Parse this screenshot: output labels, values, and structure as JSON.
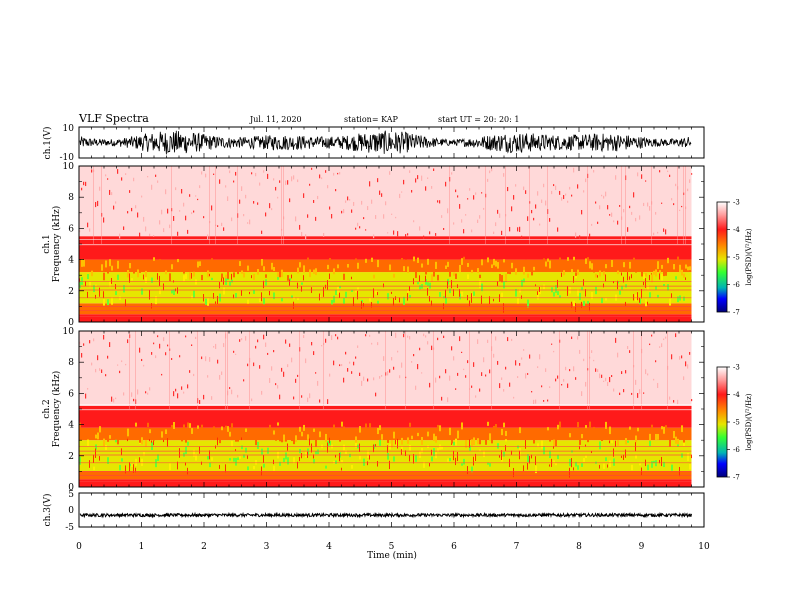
{
  "header": {
    "title": "VLF Spectra",
    "date": "Jul. 11, 2020",
    "station": "station= KAP",
    "start": "start UT = 20: 20: 1"
  },
  "colors": {
    "white": "#ffffff",
    "red": "#ff1a1a",
    "orange": "#ff8c00",
    "yellow": "#e6e600",
    "green": "#33ff33",
    "blue": "#0000ff",
    "navy": "#00007a"
  },
  "chart_data": [
    {
      "type": "line",
      "id": "ch1-waveform",
      "ylabel": "ch.1(V)",
      "ylim": [
        -10,
        10
      ],
      "yticks": [
        "10",
        "-10"
      ],
      "xlim": [
        0,
        10
      ],
      "note_series": "broadband noise waveform oscillating roughly between -8 and 8 V over 0–9.8 min"
    },
    {
      "type": "heatmap",
      "id": "ch1-spectrogram",
      "ylabel_top": "ch.1",
      "ylabel": "Frequency (kHz)",
      "ylim": [
        0,
        10
      ],
      "yticks": [
        "0",
        "2",
        "4",
        "6",
        "8",
        "10"
      ],
      "xlim": [
        0,
        10
      ],
      "data_end_min": 9.8,
      "colorbar": {
        "label": "log(PSD)(V²/Hz)",
        "range": [
          -7,
          -3
        ],
        "ticks": [
          "-3",
          "-4",
          "-5",
          "-6",
          "-7"
        ]
      },
      "bands": [
        {
          "f": [
            0,
            0.5
          ],
          "level": -4.0
        },
        {
          "f": [
            0.5,
            1.2
          ],
          "level": -4.3
        },
        {
          "f": [
            1.2,
            3.2
          ],
          "level": -4.6
        },
        {
          "f": [
            3.2,
            4.0
          ],
          "level": -4.2
        },
        {
          "f": [
            4.0,
            5.5
          ],
          "level": -3.9
        },
        {
          "f": [
            5.5,
            10
          ],
          "level": -3.2
        }
      ]
    },
    {
      "type": "heatmap",
      "id": "ch2-spectrogram",
      "ylabel_top": "ch.2",
      "ylabel": "Frequency (kHz)",
      "ylim": [
        0,
        10
      ],
      "yticks": [
        "0",
        "2",
        "4",
        "6",
        "8",
        "10"
      ],
      "xlim": [
        0,
        10
      ],
      "data_end_min": 9.8,
      "colorbar": {
        "label": "log(PSD)(V²/Hz)",
        "range": [
          -7,
          -3
        ],
        "ticks": [
          "-3",
          "-4",
          "-5",
          "-6",
          "-7"
        ]
      },
      "bands": [
        {
          "f": [
            0,
            0.5
          ],
          "level": -4.0
        },
        {
          "f": [
            0.5,
            1.0
          ],
          "level": -4.3
        },
        {
          "f": [
            1.0,
            3.0
          ],
          "level": -4.7
        },
        {
          "f": [
            3.0,
            3.8
          ],
          "level": -4.2
        },
        {
          "f": [
            3.8,
            5.2
          ],
          "level": -3.9
        },
        {
          "f": [
            5.2,
            10
          ],
          "level": -3.2
        }
      ]
    },
    {
      "type": "line",
      "id": "ch3-waveform",
      "ylabel": "ch.3(V)",
      "ylim": [
        -5,
        5
      ],
      "yticks": [
        "5",
        "0",
        "-5"
      ],
      "xlim": [
        0,
        10
      ],
      "xlabel": "Time (min)",
      "xticks": [
        "0",
        "1",
        "2",
        "3",
        "4",
        "5",
        "6",
        "7",
        "8",
        "9",
        "10"
      ],
      "note_series": "narrow oscillation near -1.5 V across 0–9.8 min"
    }
  ]
}
